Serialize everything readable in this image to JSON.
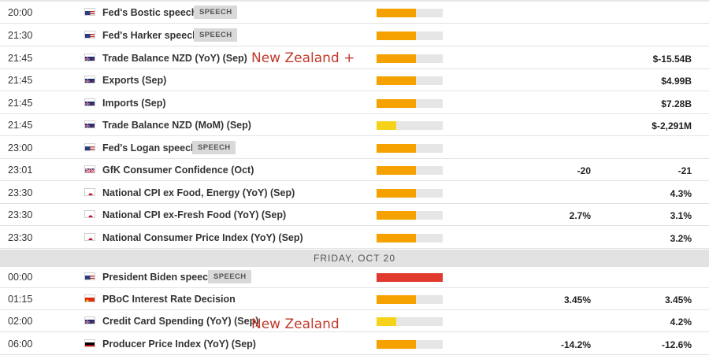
{
  "day_header": "FRIDAY, OCT 20",
  "annotations": {
    "nz_plus": "New Zealand +",
    "nz": "New Zealand"
  },
  "colors": {
    "impact_medium": "#f5a100",
    "impact_low": "#f7d21a",
    "impact_high": "#e03a2e",
    "track": "#e6e6e6"
  },
  "rows": [
    {
      "time": "20:00",
      "flag": "us",
      "event": "Fed's Bostic speech",
      "badge": "SPEECH",
      "impact": "medium",
      "impact_level": 0.6,
      "actual": "",
      "previous": ""
    },
    {
      "time": "21:30",
      "flag": "us",
      "event": "Fed's Harker speech",
      "badge": "SPEECH",
      "impact": "medium",
      "impact_level": 0.6,
      "actual": "",
      "previous": ""
    },
    {
      "time": "21:45",
      "flag": "nz",
      "event": "Trade Balance NZD (YoY) (Sep)",
      "badge": "",
      "impact": "medium",
      "impact_level": 0.6,
      "actual": "",
      "previous": "$-15.54B"
    },
    {
      "time": "21:45",
      "flag": "nz",
      "event": "Exports (Sep)",
      "badge": "",
      "impact": "medium",
      "impact_level": 0.6,
      "actual": "",
      "previous": "$4.99B"
    },
    {
      "time": "21:45",
      "flag": "nz",
      "event": "Imports (Sep)",
      "badge": "",
      "impact": "medium",
      "impact_level": 0.6,
      "actual": "",
      "previous": "$7.28B"
    },
    {
      "time": "21:45",
      "flag": "nz",
      "event": "Trade Balance NZD (MoM) (Sep)",
      "badge": "",
      "impact": "low",
      "impact_level": 0.3,
      "actual": "",
      "previous": "$-2,291M"
    },
    {
      "time": "23:00",
      "flag": "us",
      "event": "Fed's Logan speech",
      "badge": "SPEECH",
      "impact": "medium",
      "impact_level": 0.6,
      "actual": "",
      "previous": ""
    },
    {
      "time": "23:01",
      "flag": "uk",
      "event": "GfK Consumer Confidence (Oct)",
      "badge": "",
      "impact": "medium",
      "impact_level": 0.6,
      "actual": "-20",
      "previous": "-21"
    },
    {
      "time": "23:30",
      "flag": "jp",
      "event": "National CPI ex Food, Energy (YoY) (Sep)",
      "badge": "",
      "impact": "medium",
      "impact_level": 0.6,
      "actual": "",
      "previous": "4.3%"
    },
    {
      "time": "23:30",
      "flag": "jp",
      "event": "National CPI ex-Fresh Food (YoY) (Sep)",
      "badge": "",
      "impact": "medium",
      "impact_level": 0.6,
      "actual": "2.7%",
      "previous": "3.1%"
    },
    {
      "time": "23:30",
      "flag": "jp",
      "event": "National Consumer Price Index (YoY) (Sep)",
      "badge": "",
      "impact": "medium",
      "impact_level": 0.6,
      "actual": "",
      "previous": "3.2%"
    },
    {
      "time": "00:00",
      "flag": "us",
      "event": "President Biden speech",
      "badge": "SPEECH",
      "impact": "high",
      "impact_level": 1.0,
      "actual": "",
      "previous": ""
    },
    {
      "time": "01:15",
      "flag": "cn",
      "event": "PBoC Interest Rate Decision",
      "badge": "",
      "impact": "medium",
      "impact_level": 0.6,
      "actual": "3.45%",
      "previous": "3.45%"
    },
    {
      "time": "02:00",
      "flag": "nz",
      "event": "Credit Card Spending (YoY) (Sep)",
      "badge": "",
      "impact": "low",
      "impact_level": 0.3,
      "actual": "",
      "previous": "4.2%"
    },
    {
      "time": "06:00",
      "flag": "de",
      "event": "Producer Price Index (YoY) (Sep)",
      "badge": "",
      "impact": "medium",
      "impact_level": 0.6,
      "actual": "-14.2%",
      "previous": "-12.6%"
    }
  ]
}
